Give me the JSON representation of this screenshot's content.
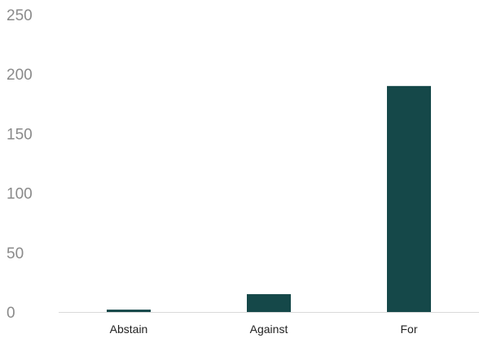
{
  "chart_data": {
    "type": "bar",
    "categories": [
      "Abstain",
      "Against",
      "For"
    ],
    "values": [
      2,
      15,
      190
    ],
    "ylim": [
      0,
      250
    ],
    "yticks": [
      0,
      50,
      100,
      150,
      200,
      250
    ],
    "xlabel": "",
    "ylabel": "",
    "title": "",
    "grid": false,
    "bar_color": "#154849",
    "axis_color": "#d9d9d9",
    "tick_label_color": "#8a8a8a",
    "category_label_color": "#222222"
  }
}
